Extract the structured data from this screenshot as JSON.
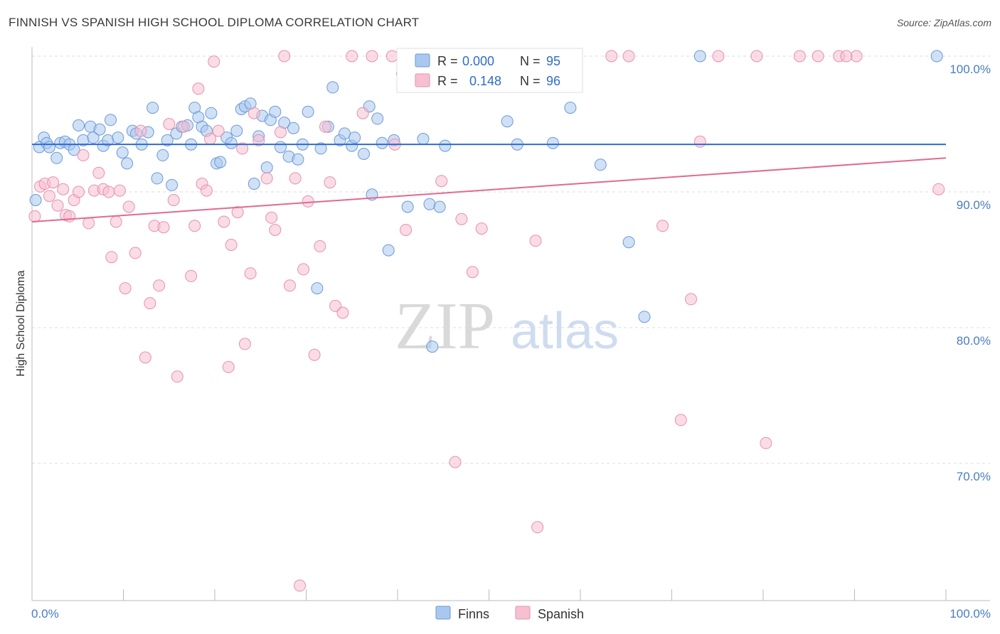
{
  "title": "FINNISH VS SPANISH HIGH SCHOOL DIPLOMA CORRELATION CHART",
  "source": "Source: ZipAtlas.com",
  "watermark": {
    "zip": "ZIP",
    "atlas": "atlas"
  },
  "legend_top": [
    {
      "r_label": "R =",
      "r_value": "0.000",
      "n_label": "N =",
      "n_value": "95"
    },
    {
      "r_label": "R =",
      "r_value": "0.148",
      "n_label": "N =",
      "n_value": "96"
    }
  ],
  "legend_bottom": [
    "Finns",
    "Spanish"
  ],
  "colors": {
    "finns_fill": "#a9c8ef",
    "finns_stroke": "#6a9ad8",
    "finns_line": "#2f6bd0",
    "spanish_fill": "#f6c0d0",
    "spanish_stroke": "#e890ad",
    "spanish_line": "#e06a92",
    "grid": "#dddddd",
    "tick_text": "#4a7cc4"
  },
  "chart_data": {
    "type": "scatter",
    "title": "FINNISH VS SPANISH HIGH SCHOOL DIPLOMA CORRELATION CHART",
    "xlabel": "",
    "ylabel": "High School Diploma",
    "x_ticks": [
      "0.0%",
      "100.0%"
    ],
    "y_ticks": [
      "100.0%",
      "90.0%",
      "80.0%",
      "70.0%"
    ],
    "xlim": [
      0,
      100
    ],
    "ylim": [
      60.5,
      101.5
    ],
    "grid": true,
    "legend": "top-center",
    "series": [
      {
        "name": "Finns",
        "R": 0.0,
        "N": 95,
        "trend": {
          "x": [
            0,
            100
          ],
          "y": [
            93.5,
            93.5
          ]
        },
        "points": [
          [
            0.4,
            89.4
          ],
          [
            0.8,
            93.3
          ],
          [
            1.3,
            94.0
          ],
          [
            1.6,
            93.6
          ],
          [
            1.9,
            93.3
          ],
          [
            2.7,
            92.5
          ],
          [
            3.1,
            93.6
          ],
          [
            3.6,
            93.7
          ],
          [
            4.1,
            93.5
          ],
          [
            4.6,
            93.1
          ],
          [
            5.1,
            94.9
          ],
          [
            5.6,
            93.8
          ],
          [
            6.4,
            94.8
          ],
          [
            6.7,
            94.0
          ],
          [
            7.4,
            94.6
          ],
          [
            7.8,
            93.4
          ],
          [
            8.3,
            93.8
          ],
          [
            8.6,
            95.3
          ],
          [
            9.4,
            94.0
          ],
          [
            9.9,
            92.9
          ],
          [
            10.4,
            92.1
          ],
          [
            11.0,
            94.5
          ],
          [
            11.4,
            94.3
          ],
          [
            12.0,
            93.5
          ],
          [
            12.7,
            94.4
          ],
          [
            13.2,
            96.2
          ],
          [
            13.7,
            91.0
          ],
          [
            14.3,
            92.7
          ],
          [
            14.8,
            93.8
          ],
          [
            15.3,
            90.5
          ],
          [
            15.8,
            94.3
          ],
          [
            16.4,
            94.8
          ],
          [
            17.0,
            94.9
          ],
          [
            17.4,
            93.5
          ],
          [
            17.8,
            96.2
          ],
          [
            18.2,
            95.5
          ],
          [
            18.6,
            94.8
          ],
          [
            19.1,
            94.5
          ],
          [
            19.6,
            95.8
          ],
          [
            20.2,
            92.1
          ],
          [
            20.6,
            92.2
          ],
          [
            21.3,
            94.0
          ],
          [
            21.8,
            93.6
          ],
          [
            22.4,
            94.5
          ],
          [
            22.9,
            96.1
          ],
          [
            23.3,
            96.3
          ],
          [
            23.9,
            96.5
          ],
          [
            24.3,
            90.6
          ],
          [
            24.8,
            94.1
          ],
          [
            25.2,
            95.6
          ],
          [
            25.7,
            91.8
          ],
          [
            26.1,
            95.3
          ],
          [
            26.6,
            95.9
          ],
          [
            27.2,
            93.3
          ],
          [
            27.6,
            95.1
          ],
          [
            28.1,
            92.6
          ],
          [
            28.6,
            94.7
          ],
          [
            29.1,
            92.4
          ],
          [
            29.6,
            93.5
          ],
          [
            30.2,
            95.9
          ],
          [
            31.2,
            82.9
          ],
          [
            31.6,
            93.2
          ],
          [
            32.4,
            94.8
          ],
          [
            32.9,
            97.7
          ],
          [
            33.7,
            93.8
          ],
          [
            34.2,
            94.3
          ],
          [
            35.0,
            93.4
          ],
          [
            35.3,
            94.0
          ],
          [
            36.3,
            92.8
          ],
          [
            36.9,
            96.3
          ],
          [
            37.2,
            89.8
          ],
          [
            37.8,
            95.4
          ],
          [
            38.3,
            93.6
          ],
          [
            39.0,
            85.7
          ],
          [
            39.6,
            93.8
          ],
          [
            40.5,
            98.7
          ],
          [
            41.1,
            88.9
          ],
          [
            42.8,
            93.9
          ],
          [
            43.8,
            78.6
          ],
          [
            43.5,
            89.1
          ],
          [
            44.6,
            88.9
          ],
          [
            45.2,
            93.4
          ],
          [
            49.5,
            98.7
          ],
          [
            50.1,
            100.0
          ],
          [
            52.0,
            95.2
          ],
          [
            53.1,
            93.5
          ],
          [
            55.4,
            100.0
          ],
          [
            57.0,
            93.6
          ],
          [
            58.9,
            96.2
          ],
          [
            59.1,
            100.0
          ],
          [
            62.2,
            92.0
          ],
          [
            65.3,
            86.3
          ],
          [
            67.0,
            80.8
          ],
          [
            73.1,
            100.0
          ],
          [
            99.0,
            100.0
          ]
        ]
      },
      {
        "name": "Spanish",
        "R": 0.148,
        "N": 96,
        "trend": {
          "x": [
            0,
            100
          ],
          "y": [
            87.8,
            92.5
          ]
        },
        "points": [
          [
            0.3,
            88.2
          ],
          [
            0.9,
            90.4
          ],
          [
            1.4,
            90.6
          ],
          [
            1.9,
            89.7
          ],
          [
            2.3,
            90.7
          ],
          [
            2.8,
            89.0
          ],
          [
            3.4,
            90.2
          ],
          [
            3.7,
            88.3
          ],
          [
            4.1,
            88.2
          ],
          [
            4.6,
            89.4
          ],
          [
            5.1,
            90.0
          ],
          [
            5.6,
            92.7
          ],
          [
            6.2,
            87.7
          ],
          [
            6.8,
            90.1
          ],
          [
            7.3,
            91.4
          ],
          [
            7.8,
            90.2
          ],
          [
            8.4,
            90.0
          ],
          [
            8.7,
            85.2
          ],
          [
            9.2,
            87.8
          ],
          [
            9.6,
            90.1
          ],
          [
            10.2,
            82.9
          ],
          [
            10.6,
            88.9
          ],
          [
            11.3,
            85.5
          ],
          [
            11.9,
            94.5
          ],
          [
            12.4,
            77.8
          ],
          [
            12.9,
            81.8
          ],
          [
            13.4,
            87.5
          ],
          [
            13.9,
            83.1
          ],
          [
            14.4,
            87.4
          ],
          [
            15.0,
            95.0
          ],
          [
            15.5,
            89.4
          ],
          [
            15.9,
            76.4
          ],
          [
            16.6,
            94.8
          ],
          [
            17.4,
            83.8
          ],
          [
            17.8,
            87.5
          ],
          [
            18.2,
            97.6
          ],
          [
            18.6,
            90.6
          ],
          [
            19.1,
            90.1
          ],
          [
            19.5,
            93.9
          ],
          [
            19.9,
            99.6
          ],
          [
            20.4,
            94.5
          ],
          [
            21.0,
            87.8
          ],
          [
            21.5,
            77.1
          ],
          [
            21.8,
            86.1
          ],
          [
            22.5,
            88.5
          ],
          [
            23.0,
            93.2
          ],
          [
            23.3,
            78.8
          ],
          [
            23.9,
            84.0
          ],
          [
            24.3,
            95.8
          ],
          [
            24.8,
            93.8
          ],
          [
            25.7,
            91.0
          ],
          [
            26.2,
            88.1
          ],
          [
            26.6,
            87.2
          ],
          [
            27.2,
            94.4
          ],
          [
            27.6,
            100.0
          ],
          [
            28.2,
            83.1
          ],
          [
            28.8,
            91.0
          ],
          [
            29.3,
            61.0
          ],
          [
            29.7,
            84.3
          ],
          [
            30.2,
            89.3
          ],
          [
            30.9,
            78.0
          ],
          [
            31.5,
            86.0
          ],
          [
            32.1,
            94.8
          ],
          [
            32.6,
            90.7
          ],
          [
            33.2,
            81.6
          ],
          [
            34.0,
            81.1
          ],
          [
            35.0,
            100.0
          ],
          [
            36.2,
            95.8
          ],
          [
            37.2,
            100.0
          ],
          [
            39.4,
            100.0
          ],
          [
            39.7,
            93.5
          ],
          [
            40.9,
            87.2
          ],
          [
            44.3,
            100.0
          ],
          [
            44.8,
            90.8
          ],
          [
            46.3,
            70.1
          ],
          [
            47.0,
            88.0
          ],
          [
            48.2,
            84.1
          ],
          [
            49.2,
            87.3
          ],
          [
            52.4,
            100.0
          ],
          [
            55.1,
            86.4
          ],
          [
            55.3,
            65.3
          ],
          [
            63.4,
            100.0
          ],
          [
            65.3,
            100.0
          ],
          [
            69.0,
            87.5
          ],
          [
            71.0,
            73.2
          ],
          [
            72.1,
            82.1
          ],
          [
            73.1,
            93.7
          ],
          [
            75.1,
            100.0
          ],
          [
            79.3,
            100.0
          ],
          [
            80.3,
            71.5
          ],
          [
            84.0,
            100.0
          ],
          [
            86.0,
            100.0
          ],
          [
            88.3,
            100.0
          ],
          [
            90.2,
            100.0
          ],
          [
            89.1,
            100.0
          ],
          [
            99.2,
            90.2
          ]
        ]
      }
    ]
  }
}
